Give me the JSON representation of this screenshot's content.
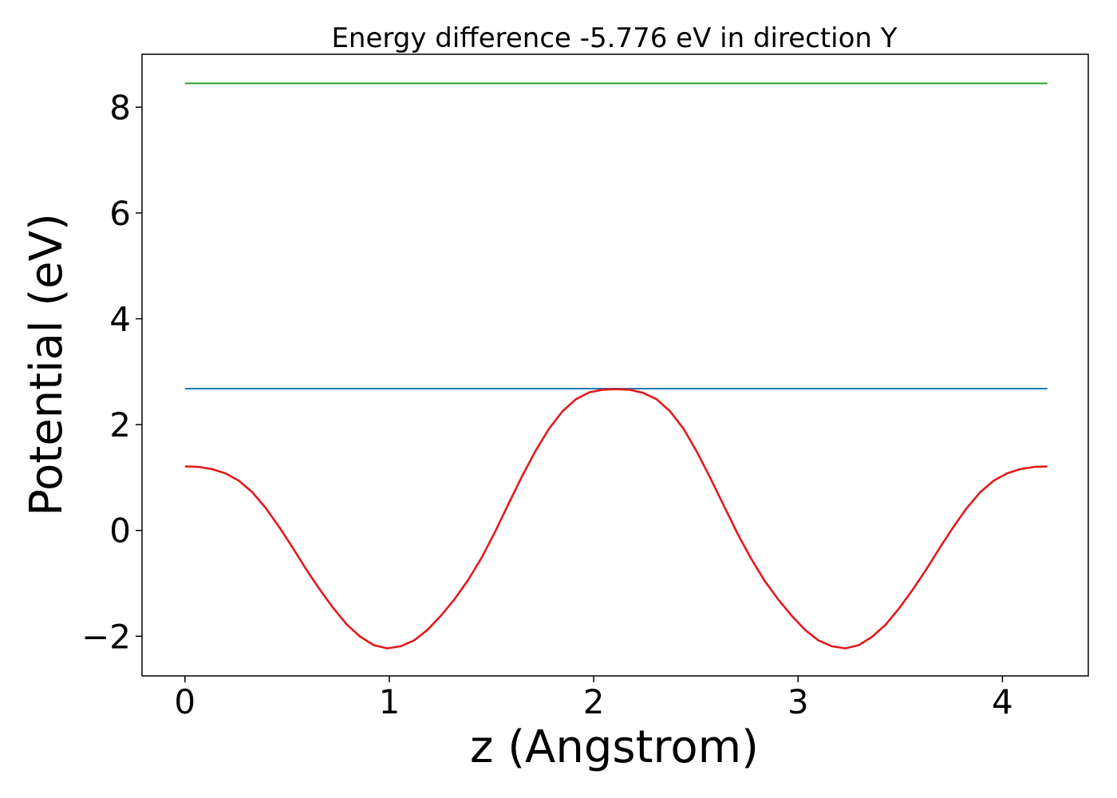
{
  "chart_data": {
    "type": "line",
    "title": "Energy difference -5.776 eV in direction Y",
    "xlabel": "z (Angstrom)",
    "ylabel": "Potential (eV)",
    "xlim": [
      -0.21,
      4.42
    ],
    "ylim": [
      -2.75,
      9.0
    ],
    "xticks": [
      0,
      1,
      2,
      3,
      4
    ],
    "yticks": [
      -2,
      0,
      2,
      4,
      6,
      8
    ],
    "xtick_labels": [
      "0",
      "1",
      "2",
      "3",
      "4"
    ],
    "ytick_labels": [
      "−2",
      "0",
      "2",
      "4",
      "6",
      "8"
    ],
    "grid": false,
    "legend": false,
    "series": [
      {
        "color": "#2ca02c",
        "x": [
          0,
          4.22
        ],
        "y": [
          8.45,
          8.45
        ]
      },
      {
        "color": "#1f77b4",
        "x": [
          0,
          4.22
        ],
        "y": [
          2.68,
          2.68
        ]
      },
      {
        "color": "#e31a1c",
        "x": [
          0.0,
          0.066,
          0.132,
          0.198,
          0.264,
          0.33,
          0.396,
          0.462,
          0.528,
          0.594,
          0.66,
          0.726,
          0.792,
          0.858,
          0.924,
          0.99,
          1.055,
          1.121,
          1.187,
          1.253,
          1.319,
          1.385,
          1.451,
          1.517,
          1.583,
          1.649,
          1.715,
          1.781,
          1.847,
          1.913,
          1.979,
          2.045,
          2.11,
          2.176,
          2.242,
          2.308,
          2.374,
          2.44,
          2.506,
          2.572,
          2.638,
          2.704,
          2.77,
          2.836,
          2.902,
          2.968,
          3.034,
          3.1,
          3.166,
          3.231,
          3.297,
          3.363,
          3.429,
          3.495,
          3.561,
          3.627,
          3.693,
          3.759,
          3.825,
          3.891,
          3.957,
          4.023,
          4.089,
          4.155,
          4.22
        ],
        "y": [
          1.21,
          1.2,
          1.16,
          1.08,
          0.94,
          0.72,
          0.42,
          0.06,
          -0.33,
          -0.74,
          -1.12,
          -1.47,
          -1.78,
          -2.01,
          -2.17,
          -2.23,
          -2.19,
          -2.08,
          -1.88,
          -1.61,
          -1.3,
          -0.94,
          -0.52,
          -0.03,
          0.5,
          1.02,
          1.5,
          1.92,
          2.25,
          2.48,
          2.61,
          2.66,
          2.67,
          2.66,
          2.6,
          2.48,
          2.25,
          1.92,
          1.48,
          0.98,
          0.46,
          -0.06,
          -0.53,
          -0.95,
          -1.3,
          -1.61,
          -1.88,
          -2.08,
          -2.19,
          -2.23,
          -2.17,
          -2.01,
          -1.78,
          -1.47,
          -1.12,
          -0.74,
          -0.33,
          0.06,
          0.42,
          0.72,
          0.94,
          1.08,
          1.16,
          1.2,
          1.21
        ]
      }
    ]
  }
}
